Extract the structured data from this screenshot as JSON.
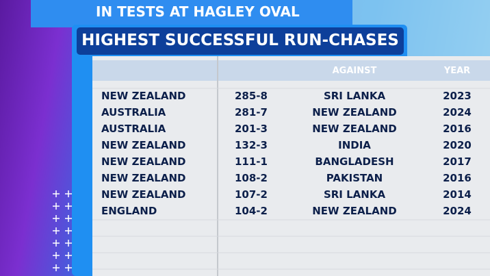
{
  "header": {
    "subtitle": "IN TESTS AT HAGLEY OVAL",
    "title": "HIGHEST SUCCESSFUL RUN-CHASES"
  },
  "table": {
    "columns": [
      "AGAINST",
      "YEAR"
    ],
    "rows": [
      [
        "NEW ZEALAND",
        "285-8",
        "SRI LANKA",
        "2023"
      ],
      [
        "AUSTRALIA",
        "281-7",
        "NEW ZEALAND",
        "2024"
      ],
      [
        "AUSTRALIA",
        "201-3",
        "NEW ZEALAND",
        "2016"
      ],
      [
        "NEW ZEALAND",
        "132-3",
        "INDIA",
        "2020"
      ],
      [
        "NEW ZEALAND",
        "111-1",
        "BANGLADESH",
        "2017"
      ],
      [
        "NEW ZEALAND",
        "108-2",
        "PAKISTAN",
        "2016"
      ],
      [
        "NEW ZEALAND",
        "107-2",
        "SRI LANKA",
        "2014"
      ],
      [
        "ENGLAND",
        "104-2",
        "NEW ZEALAND",
        "2024"
      ]
    ]
  }
}
